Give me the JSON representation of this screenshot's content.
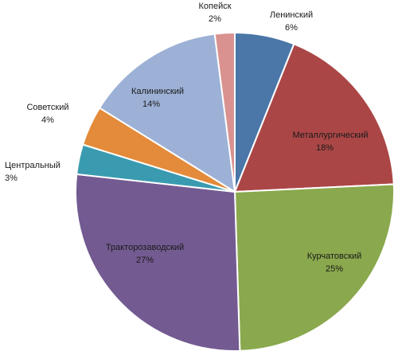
{
  "chart_data": {
    "type": "pie",
    "title": "",
    "start_angle_deg": 0,
    "direction": "clockwise",
    "slices": [
      {
        "name": "Ленинский",
        "value": 6,
        "label": "6%",
        "color": "#4a76a8",
        "label_position": "outside"
      },
      {
        "name": "Металлургический",
        "value": 18,
        "label": "18%",
        "color": "#ab4646",
        "label_position": "inside"
      },
      {
        "name": "Курчатовский",
        "value": 25,
        "label": "25%",
        "color": "#8aa84d",
        "label_position": "inside"
      },
      {
        "name": "Тракторозаводский",
        "value": 27,
        "label": "27%",
        "color": "#735a91",
        "label_position": "inside"
      },
      {
        "name": "Центральный",
        "value": 3,
        "label": "3%",
        "color": "#3a9bb0",
        "label_position": "outside"
      },
      {
        "name": "Советский",
        "value": 4,
        "label": "4%",
        "color": "#e38b3a",
        "label_position": "outside"
      },
      {
        "name": "Калининский",
        "value": 14,
        "label": "14%",
        "color": "#9db1d6",
        "label_position": "inside"
      },
      {
        "name": "Копейск",
        "value": 2,
        "label": "2%",
        "color": "#d9928f",
        "label_position": "outside"
      }
    ]
  }
}
